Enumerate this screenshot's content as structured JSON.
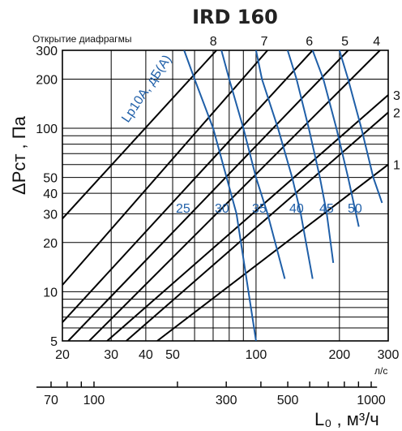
{
  "chart_data": {
    "type": "line",
    "title": "IRD 160",
    "subtitle": "Открытие диафрагмы",
    "x_unit": "л/с",
    "x_ticks": [
      20,
      30,
      40,
      50,
      100,
      200,
      300
    ],
    "xlim": [
      20,
      300
    ],
    "x_scale": "log",
    "x2_ticks": [
      70,
      100,
      300,
      500,
      1000
    ],
    "x2_unit_label": "L₀ , м³/ч",
    "ylabel": "ΔPст , Па",
    "y_ticks": [
      5,
      10,
      20,
      30,
      40,
      50,
      100,
      200,
      300
    ],
    "ylim": [
      5,
      300
    ],
    "y_scale": "log",
    "grid": true,
    "opening_series": [
      {
        "name": "1",
        "points": [
          [
            44,
            5
          ],
          [
            300,
            60
          ]
        ]
      },
      {
        "name": "2",
        "points": [
          [
            34,
            5
          ],
          [
            300,
            125
          ]
        ]
      },
      {
        "name": "3",
        "points": [
          [
            29,
            5
          ],
          [
            300,
            160
          ]
        ]
      },
      {
        "name": "4",
        "points": [
          [
            25,
            5
          ],
          [
            280,
            300
          ]
        ]
      },
      {
        "name": "5",
        "points": [
          [
            21,
            5
          ],
          [
            215,
            300
          ]
        ]
      },
      {
        "name": "6",
        "points": [
          [
            20,
            6.5
          ],
          [
            160,
            300
          ]
        ]
      },
      {
        "name": "7",
        "points": [
          [
            20,
            11
          ],
          [
            110,
            300
          ]
        ]
      },
      {
        "name": "8",
        "points": [
          [
            20,
            28
          ],
          [
            72,
            300
          ]
        ]
      }
    ],
    "sound_series": [
      {
        "name": "25",
        "points": [
          [
            55,
            300
          ],
          [
            60,
            200
          ],
          [
            70,
            100
          ],
          [
            85,
            30
          ],
          [
            100,
            5
          ]
        ]
      },
      {
        "name": "30",
        "points": [
          [
            75,
            300
          ],
          [
            80,
            200
          ],
          [
            90,
            100
          ],
          [
            100,
            50
          ],
          [
            110,
            30
          ],
          [
            127,
            12
          ]
        ]
      },
      {
        "name": "35",
        "points": [
          [
            100,
            300
          ],
          [
            105,
            200
          ],
          [
            120,
            100
          ],
          [
            135,
            50
          ],
          [
            145,
            30
          ],
          [
            160,
            12
          ]
        ]
      },
      {
        "name": "40",
        "points": [
          [
            130,
            300
          ],
          [
            140,
            200
          ],
          [
            155,
            100
          ],
          [
            170,
            50
          ],
          [
            180,
            30
          ],
          [
            190,
            15
          ]
        ]
      },
      {
        "name": "45",
        "points": [
          [
            160,
            300
          ],
          [
            175,
            200
          ],
          [
            195,
            100
          ],
          [
            215,
            50
          ],
          [
            235,
            25
          ]
        ]
      },
      {
        "name": "50",
        "points": [
          [
            200,
            300
          ],
          [
            215,
            200
          ],
          [
            240,
            100
          ],
          [
            265,
            50
          ],
          [
            285,
            35
          ]
        ]
      }
    ],
    "sound_label": "Lp10A, дБ(A)"
  }
}
